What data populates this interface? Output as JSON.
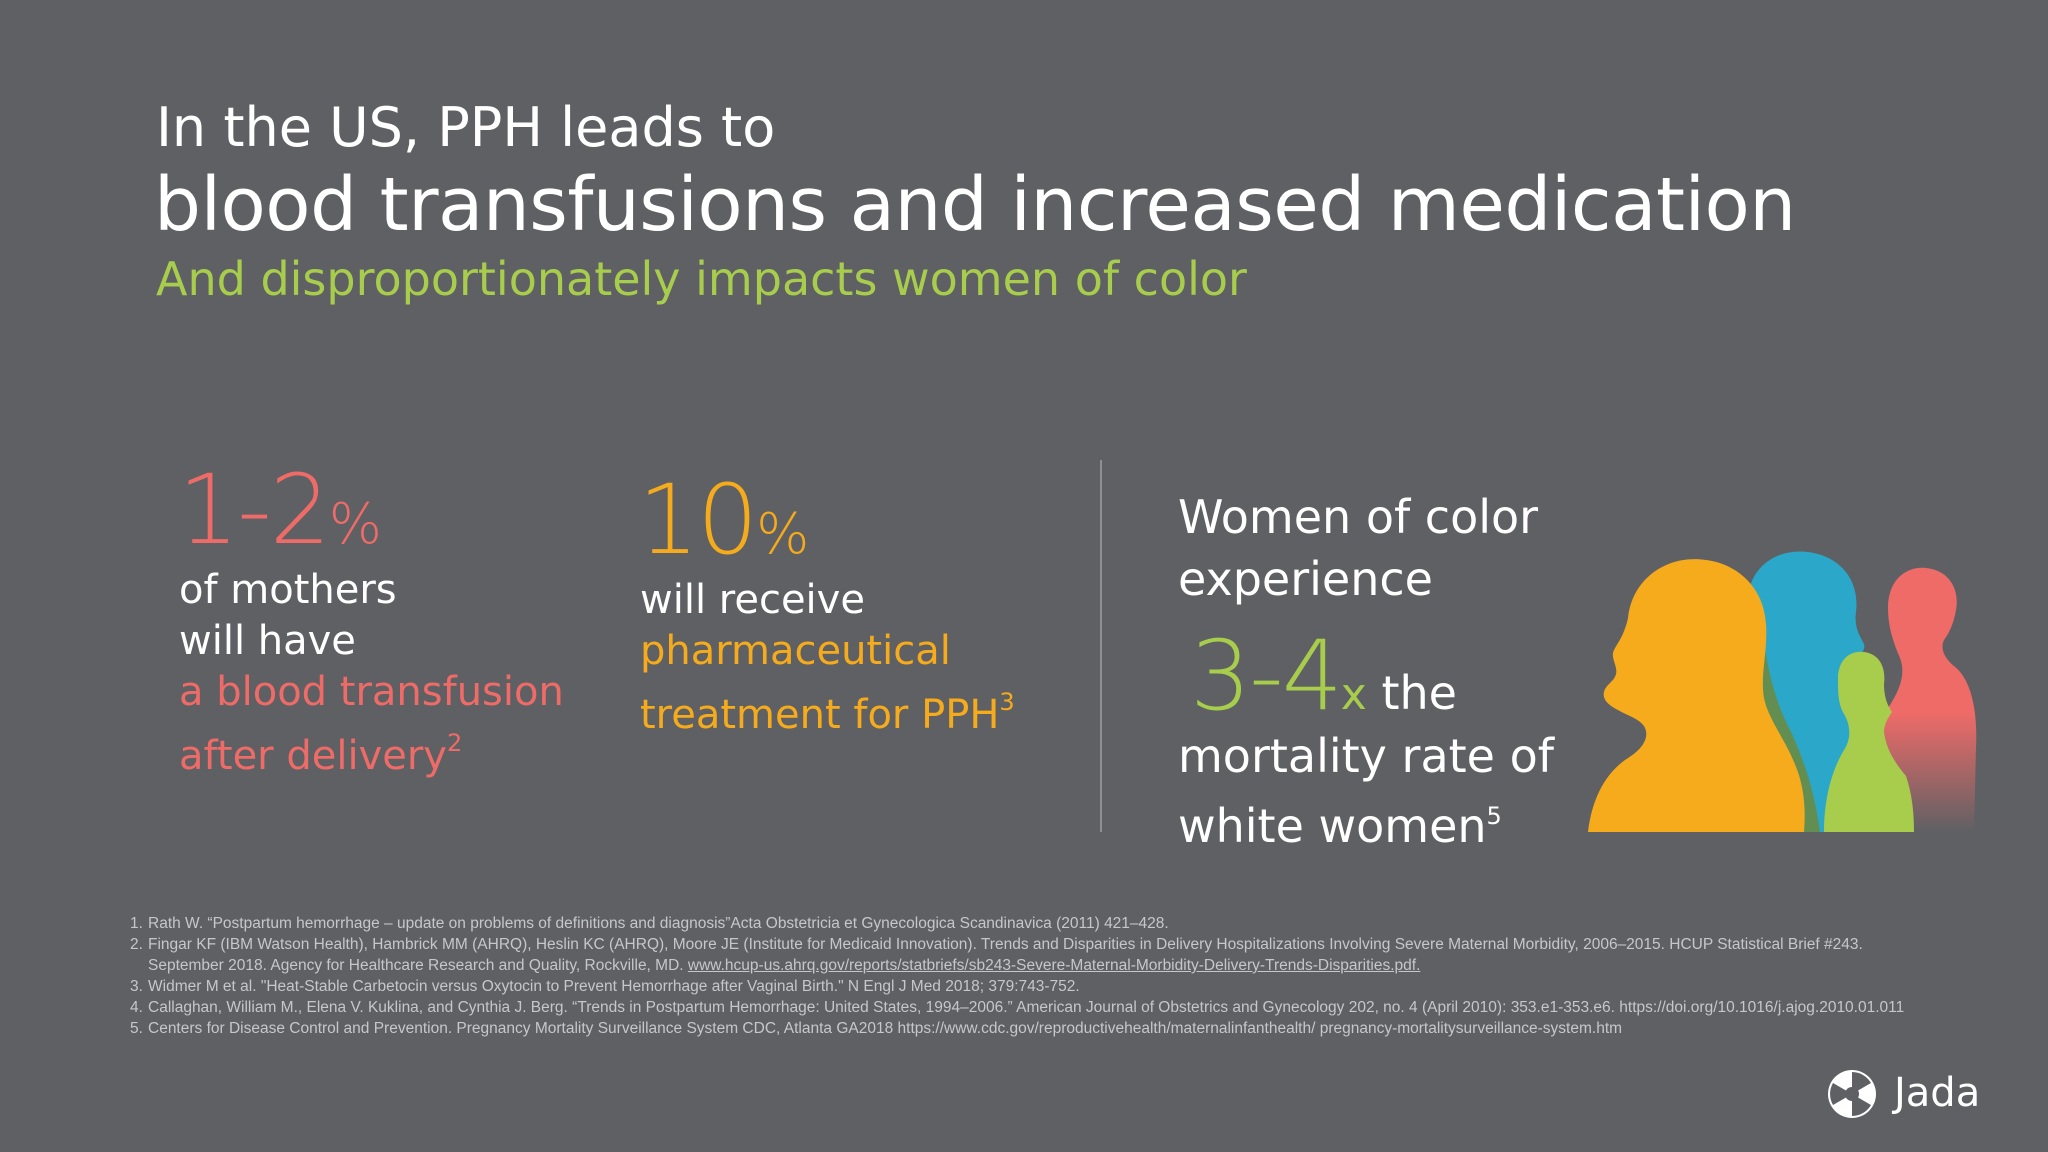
{
  "heading": {
    "line1": "In the US, PPH leads to",
    "line2": "blood transfusions and increased medication",
    "subtitle": "And disproportionately impacts women of color"
  },
  "stats": [
    {
      "number": "1-2",
      "unit": "%",
      "line1": "of mothers",
      "line2": "will have",
      "highlight1": "a blood transfusion",
      "highlight2": "after delivery",
      "ref": "2",
      "color": "#ee6b68"
    },
    {
      "number": "10",
      "unit": "%",
      "line1": "will receive",
      "highlight1": "pharmaceutical",
      "highlight2": "treatment for PPH",
      "ref": "3",
      "color": "#f5ab1b"
    },
    {
      "intro1": "Women of color",
      "intro2": "experience",
      "number": "3-4",
      "unit": "x",
      "after_number": " the",
      "line1": "mortality rate of",
      "line2": "white women",
      "ref": "5",
      "color": "#a8cd4c"
    }
  ],
  "references": [
    {
      "num": "1.",
      "text": "Rath W. “Postpartum hemorrhage – update on problems of definitions and diagnosis”Acta Obstetricia et Gynecologica Scandinavica  (2011) 421–428."
    },
    {
      "num": "2.",
      "text": "Fingar KF (IBM Watson Health), Hambrick MM (AHRQ), Heslin KC (AHRQ), Moore JE (Institute for Medicaid Innovation). Trends and Disparities in Delivery Hospitalizations Involving Severe Maternal Morbidity, 2006–2015. HCUP Statistical Brief #243. September 2018. Agency for Healthcare Research and Quality, Rockville, MD. ",
      "link": "www.hcup-us.ahrq.gov/reports/statbriefs/sb243-Severe-Maternal-Morbidity-Delivery-Trends-Disparities.pdf."
    },
    {
      "num": "3.",
      "text": "Widmer M et al. \"Heat-Stable Carbetocin versus Oxytocin to Prevent Hemorrhage after Vaginal Birth.\" N Engl J Med 2018; 379:743-752."
    },
    {
      "num": "4.",
      "text": "Callaghan, William M., Elena V. Kuklina, and Cynthia J. Berg. “Trends in Postpartum Hemorrhage: United States, 1994–2006.” American Journal of Obstetrics and Gynecology 202, no. 4 (April 2010): 353.e1-353.e6. https://doi.org/10.1016/j.ajog.2010.01.011"
    },
    {
      "num": "5.",
      "text": "Centers for Disease Control and Prevention. Pregnancy Mortality Surveillance System CDC, Atlanta GA2018 https://www.cdc.gov/reproductivehealth/maternalinfanthealth/ pregnancy-mortalitysurveillance-system.htm"
    }
  ],
  "brand": {
    "name": "Jada",
    "logo_icon": "jada-logo-icon"
  },
  "colors": {
    "background": "#5f6064",
    "coral": "#ee6b68",
    "amber": "#f5ab1b",
    "lime": "#a8cd4c",
    "blue": "#2aa7c9"
  }
}
